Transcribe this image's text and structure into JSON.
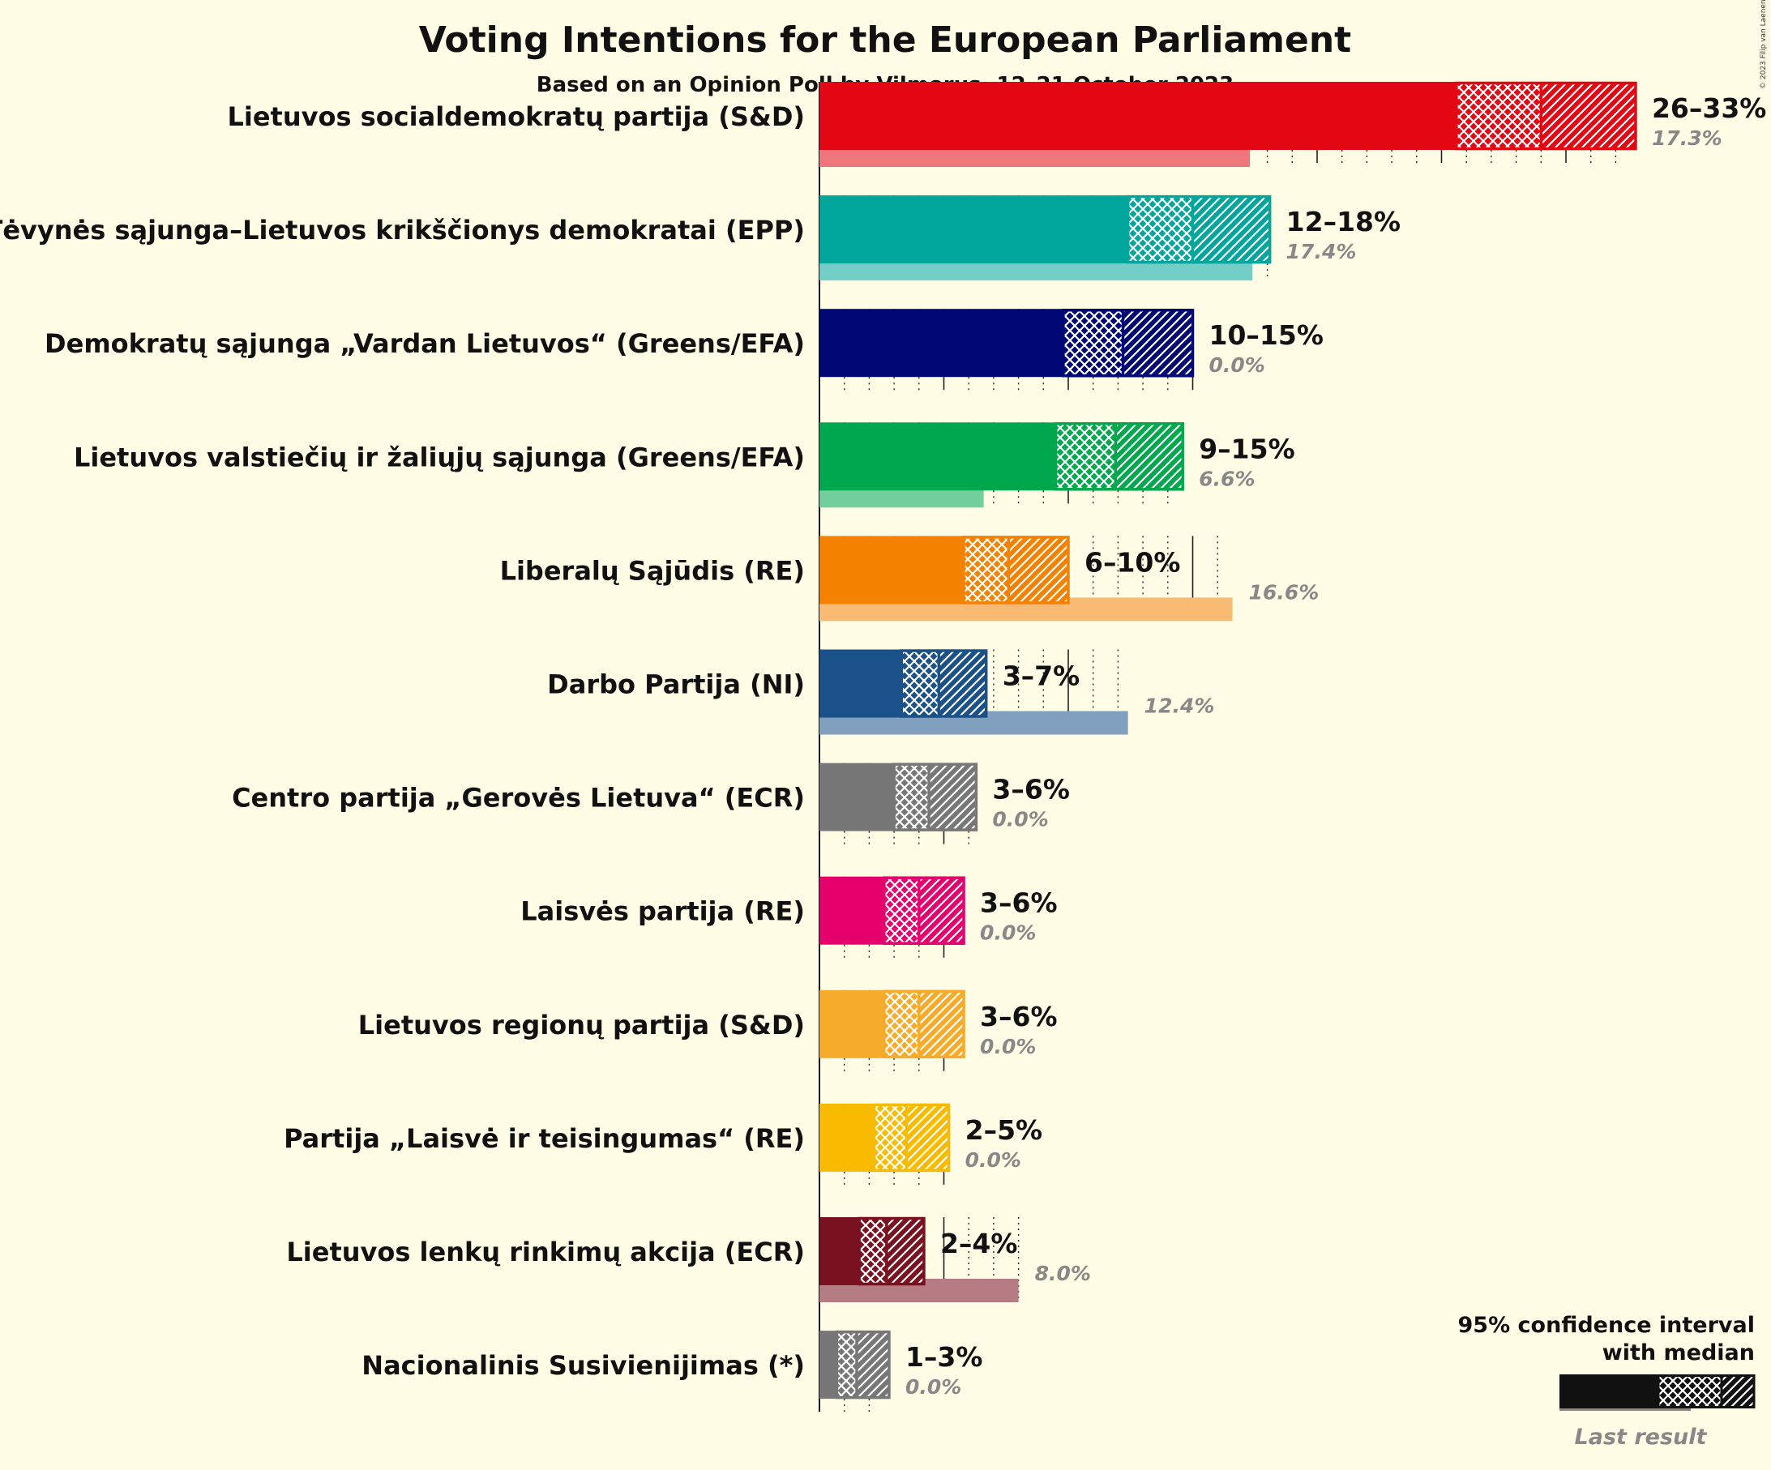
{
  "chart_data": {
    "type": "bar",
    "title": "Voting Intentions for the European Parliament",
    "subtitle": "Based on an Opinion Poll by Vilmorus, 12–21 October 2023",
    "copyright": "© 2023 Filip van Laenen",
    "xlim": [
      0,
      33
    ],
    "parties": [
      {
        "name": "Lietuvos socialdemokratų partija (S&D)",
        "color": "#e30613",
        "low": 25.6,
        "median": 29.0,
        "high": 32.8,
        "last": 17.3,
        "range_label": "26–33%",
        "last_label": "17.3%"
      },
      {
        "name": "Tėvynės sąjunga–Lietuvos krikščionys demokratai (EPP)",
        "color": "#00a59b",
        "low": 12.4,
        "median": 15.0,
        "high": 18.1,
        "last": 17.4,
        "range_label": "12–18%",
        "last_label": "17.4%"
      },
      {
        "name": "Demokratų sąjunga „Vardan Lietuvos“ (Greens/EFA)",
        "color": "#020873",
        "low": 9.8,
        "median": 12.2,
        "high": 15.0,
        "last": 0.0,
        "range_label": "10–15%",
        "last_label": "0.0%"
      },
      {
        "name": "Lietuvos valstiečių ir žaliųjų sąjunga (Greens/EFA)",
        "color": "#00a84d",
        "low": 9.5,
        "median": 11.9,
        "high": 14.6,
        "last": 6.6,
        "range_label": "9–15%",
        "last_label": "6.6%"
      },
      {
        "name": "Liberalų Sąjūdis (RE)",
        "color": "#f48100",
        "low": 5.8,
        "median": 7.6,
        "high": 10.0,
        "last": 16.6,
        "range_label": "6–10%",
        "last_label": "16.6%"
      },
      {
        "name": "Darbo Partija (NI)",
        "color": "#1a5188",
        "low": 3.3,
        "median": 4.8,
        "high": 6.7,
        "last": 12.4,
        "range_label": "3–7%",
        "last_label": "12.4%"
      },
      {
        "name": "Centro partija „Gerovės Lietuva“ (ECR)",
        "color": "#777777",
        "low": 3.0,
        "median": 4.4,
        "high": 6.3,
        "last": 0.0,
        "range_label": "3–6%",
        "last_label": "0.0%"
      },
      {
        "name": "Laisvės partija (RE)",
        "color": "#e5006c",
        "low": 2.6,
        "median": 4.0,
        "high": 5.8,
        "last": 0.0,
        "range_label": "3–6%",
        "last_label": "0.0%"
      },
      {
        "name": "Lietuvos regionų partija (S&D)",
        "color": "#f7ab2a",
        "low": 2.6,
        "median": 4.0,
        "high": 5.8,
        "last": 0.0,
        "range_label": "3–6%",
        "last_label": "0.0%"
      },
      {
        "name": "Partija „Laisvė ir teisingumas“ (RE)",
        "color": "#f8bb00",
        "low": 2.2,
        "median": 3.5,
        "high": 5.2,
        "last": 0.0,
        "range_label": "2–5%",
        "last_label": "0.0%"
      },
      {
        "name": "Lietuvos lenkų rinkimų akcija (ECR)",
        "color": "#7a1120",
        "low": 1.6,
        "median": 2.7,
        "high": 4.2,
        "last": 8.0,
        "range_label": "2–4%",
        "last_label": "8.0%"
      },
      {
        "name": "Nacionalinis Susivienijimas (*)",
        "color": "#777777",
        "low": 0.7,
        "median": 1.5,
        "high": 2.8,
        "last": 0.0,
        "range_label": "1–3%",
        "last_label": "0.0%"
      }
    ],
    "legend": {
      "line1": "95% confidence interval",
      "line2": "with median",
      "last_result": "Last result",
      "position": "bottom-right"
    }
  }
}
